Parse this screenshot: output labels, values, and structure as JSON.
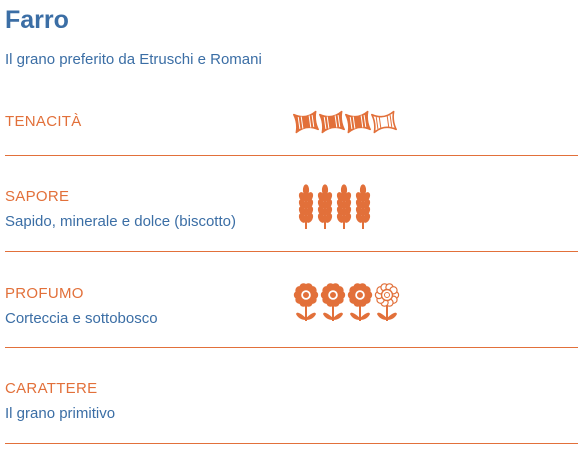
{
  "header": {
    "title": "Farro",
    "subtitle": "Il grano preferito da Etruschi e Romani"
  },
  "rows": [
    {
      "label": "TENACITÀ",
      "icon": "pasta",
      "rating": 3,
      "max": 4
    },
    {
      "label": "SAPORE",
      "description": "Sapido, minerale e dolce (biscotto)",
      "icon": "wheat",
      "rating": 4,
      "max": 4
    },
    {
      "label": "PROFUMO",
      "description": "Corteccia e sottobosco",
      "icon": "flower",
      "rating": 3,
      "max": 4
    },
    {
      "label": "CARATTERE",
      "description": "Il grano primitivo"
    }
  ]
}
